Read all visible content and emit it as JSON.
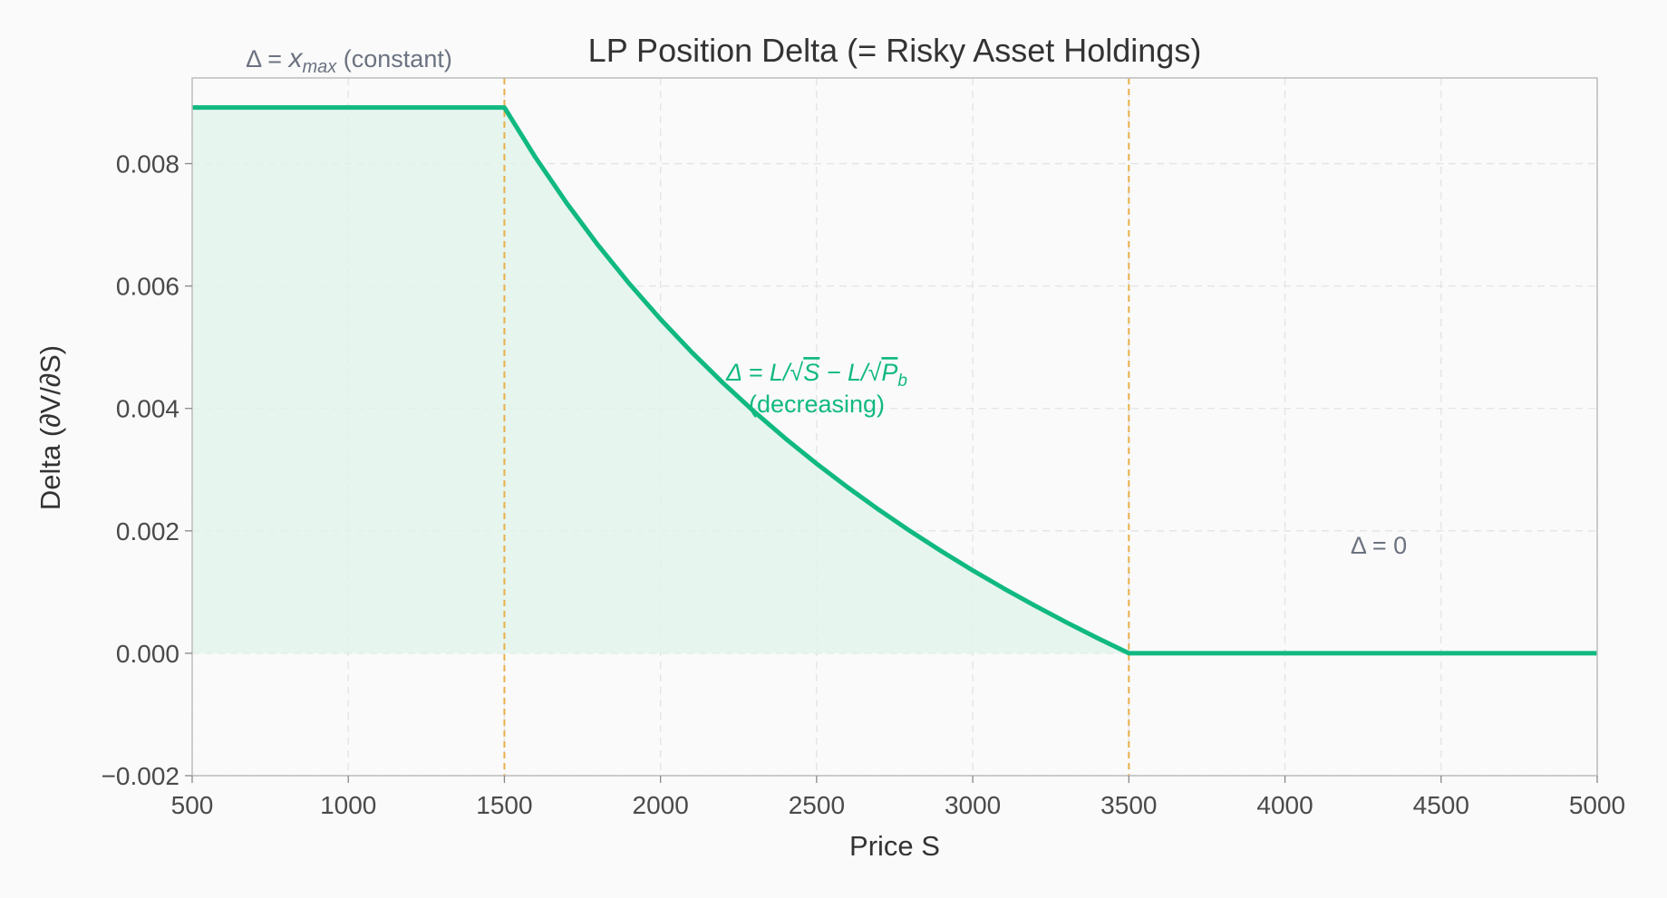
{
  "chart_data": {
    "type": "area",
    "title": "LP Position Delta (= Risky Asset Holdings)",
    "xlabel": "Price S",
    "ylabel": "Delta (∂V/∂S)",
    "xlim": [
      500,
      5000
    ],
    "ylim": [
      -0.002,
      0.0094
    ],
    "grid": true,
    "x_ticks": [
      500,
      1000,
      1500,
      2000,
      2500,
      3000,
      3500,
      4000,
      4500,
      5000
    ],
    "x_tick_labels": [
      "500",
      "1000",
      "1500",
      "2000",
      "2500",
      "3000",
      "3500",
      "4000",
      "4500",
      "5000"
    ],
    "y_ticks": [
      -0.002,
      0.0,
      0.002,
      0.004,
      0.006,
      0.008
    ],
    "y_tick_labels": [
      "−0.002",
      "0.000",
      "0.002",
      "0.004",
      "0.006",
      "0.008"
    ],
    "series": [
      {
        "x": [
          500,
          1000,
          1500,
          1600,
          1700,
          1800,
          1900,
          2000,
          2100,
          2200,
          2300,
          2400,
          2500,
          2600,
          2700,
          2800,
          2900,
          3000,
          3100,
          3200,
          3300,
          3400,
          3500,
          4000,
          4500,
          5000
        ],
        "y": [
          0.008917,
          0.008917,
          0.008917,
          0.008097,
          0.007351,
          0.006667,
          0.006039,
          0.005458,
          0.004919,
          0.004417,
          0.003948,
          0.003509,
          0.003097,
          0.002709,
          0.002342,
          0.001995,
          0.001666,
          0.001354,
          0.001057,
          0.000775,
          0.000505,
          0.000247,
          0.0,
          0.0,
          0.0,
          0.0
        ],
        "color": "#10b981",
        "fill_color": "#e2f3eb"
      }
    ],
    "vlines": [
      {
        "x": 1500,
        "color": "#e8b04a",
        "style": "dashed"
      },
      {
        "x": 3500,
        "color": "#e8b04a",
        "style": "dashed"
      }
    ],
    "annotations": [
      {
        "text": "Δ = x_max (constant)",
        "x": 1000,
        "y_above_plot": true
      },
      {
        "text": "Δ = L/√S − L/√P_b",
        "x": 2500,
        "y": 0.0045
      },
      {
        "text": "(decreasing)",
        "x": 2500,
        "y": 0.004
      },
      {
        "text": "Δ = 0",
        "x": 4300,
        "y": 0.0017
      }
    ],
    "annotation_parts": {
      "delta_xmax_prefix": "Δ = ",
      "delta_xmax_var": "x",
      "delta_xmax_sub": "max",
      "delta_xmax_suffix": " (constant)",
      "formula_prefix": "Δ = L/",
      "formula_s": "S",
      "formula_mid": " − L/",
      "formula_p": "P",
      "formula_sub": "b",
      "decreasing": "(decreasing)",
      "zero": "Δ = 0"
    }
  }
}
